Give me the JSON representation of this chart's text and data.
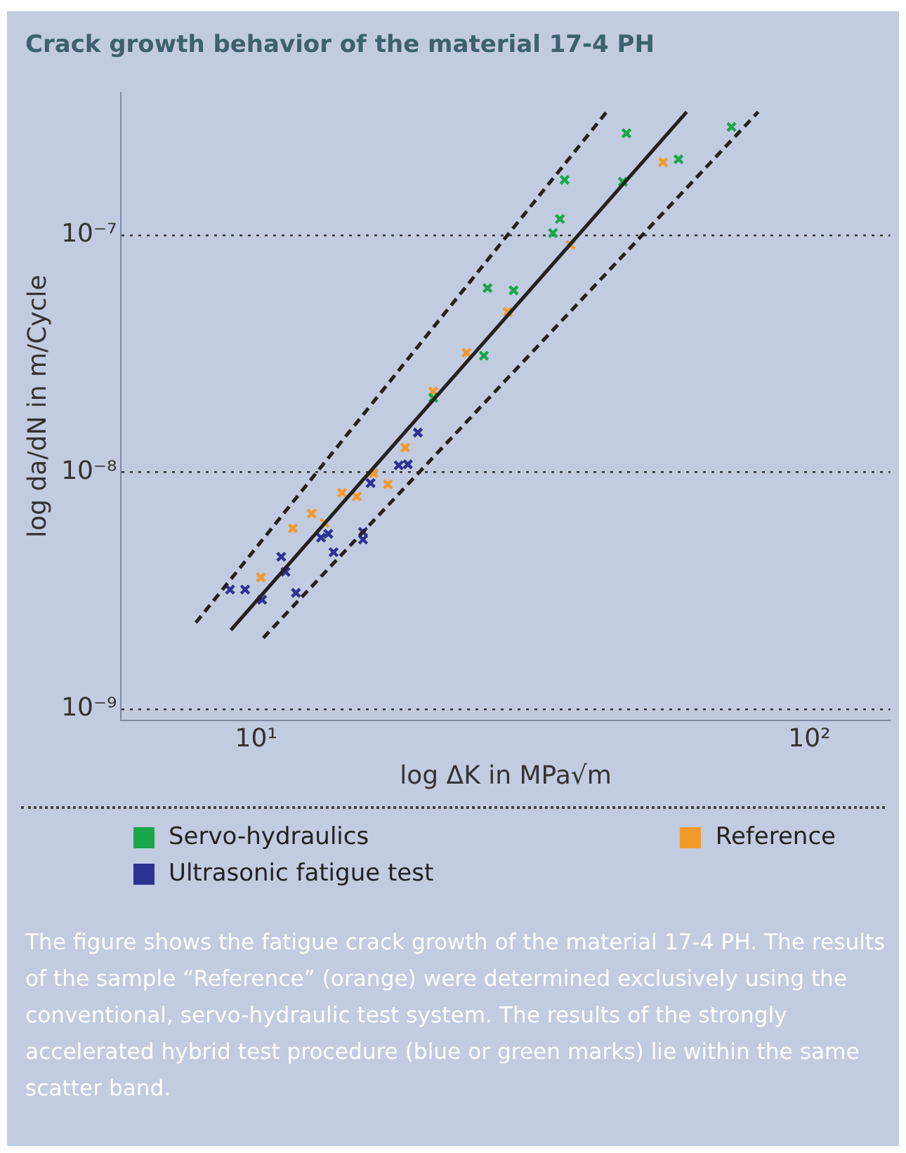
{
  "chart_data": {
    "type": "scatter",
    "title": "Crack growth behavior of the material 17-4 PH",
    "xlabel": "log ΔK in MPa√m",
    "ylabel": "log da/dN in m/Cycle",
    "log": "xy",
    "grid": "y",
    "legend": "bottom",
    "marker": "cross",
    "xlim": [
      5.7,
      140
    ],
    "ylim": [
      9e-10,
      4e-07
    ],
    "xticks": [
      {
        "value": 10,
        "label": "10¹"
      },
      {
        "value": 100,
        "label": "10²"
      }
    ],
    "yticks": [
      {
        "value": 1e-09,
        "label": "10⁻⁹"
      },
      {
        "value": 1e-08,
        "label": "10⁻⁸"
      },
      {
        "value": 1e-07,
        "label": "10⁻⁷"
      }
    ],
    "series": [
      {
        "name": "Servo-hydraulics",
        "color": "#1aa64a",
        "x": [
          46.7,
          72.3,
          58.0,
          36.1,
          46.0,
          35.4,
          34.4,
          26.2,
          29.2,
          25.8,
          20.9
        ],
        "values": [
          2.69e-07,
          2.86e-07,
          2.09e-07,
          1.71e-07,
          1.68e-07,
          1.17e-07,
          1.02e-07,
          5.98e-08,
          5.85e-08,
          3.1e-08,
          2.06e-08
        ]
      },
      {
        "name": "Reference",
        "color": "#f39a2b",
        "x": [
          54.4,
          37.0,
          28.5,
          24.0,
          20.9,
          18.6,
          16.3,
          17.3,
          14.3,
          15.2,
          12.6,
          11.65,
          13.3,
          10.2
        ],
        "values": [
          2.03e-07,
          9.1e-08,
          4.75e-08,
          3.19e-08,
          2.19e-08,
          1.27e-08,
          9.9e-09,
          8.9e-09,
          8.2e-09,
          7.9e-09,
          6.7e-09,
          5.8e-09,
          6.1e-09,
          3.6e-09
        ]
      },
      {
        "name": "Ultrasonic fatigue test",
        "color": "#2e3192",
        "x": [
          19.6,
          18.1,
          18.8,
          16.1,
          13.1,
          13.5,
          15.6,
          15.6,
          13.8,
          11.1,
          11.3,
          8.97,
          9.55,
          10.25,
          11.8
        ],
        "values": [
          1.47e-08,
          1.07e-08,
          1.08e-08,
          9e-09,
          5.3e-09,
          5.5e-09,
          5.6e-09,
          5.2e-09,
          4.6e-09,
          4.4e-09,
          3.8e-09,
          3.2e-09,
          3.2e-09,
          2.9e-09,
          3.1e-09
        ]
      },
      {
        "type": "line",
        "color": "#222222",
        "line_style": "solid",
        "marker": "none",
        "x": [
          9.0,
          60.0
        ],
        "values": [
          2.16e-09,
          3.31e-07
        ]
      },
      {
        "type": "line",
        "color": "#222222",
        "line_style": "dashed",
        "marker": "none",
        "x": [
          7.78,
          43.0
        ],
        "values": [
          2.32e-09,
          3.31e-07
        ]
      },
      {
        "type": "line",
        "color": "#222222",
        "line_style": "dashed",
        "marker": "none",
        "x": [
          10.3,
          80.8
        ],
        "values": [
          2e-09,
          3.31e-07
        ]
      }
    ],
    "annotations": [
      "The figure shows the fatigue crack growth of the material 17-4 PH. The results of the sample “Reference” (orange) were determined exclusively using the conventional, servo-hydraulic test system. The results of the strongly accelerated hybrid test procedure (blue or green marks) lie within the same scatter band."
    ]
  }
}
